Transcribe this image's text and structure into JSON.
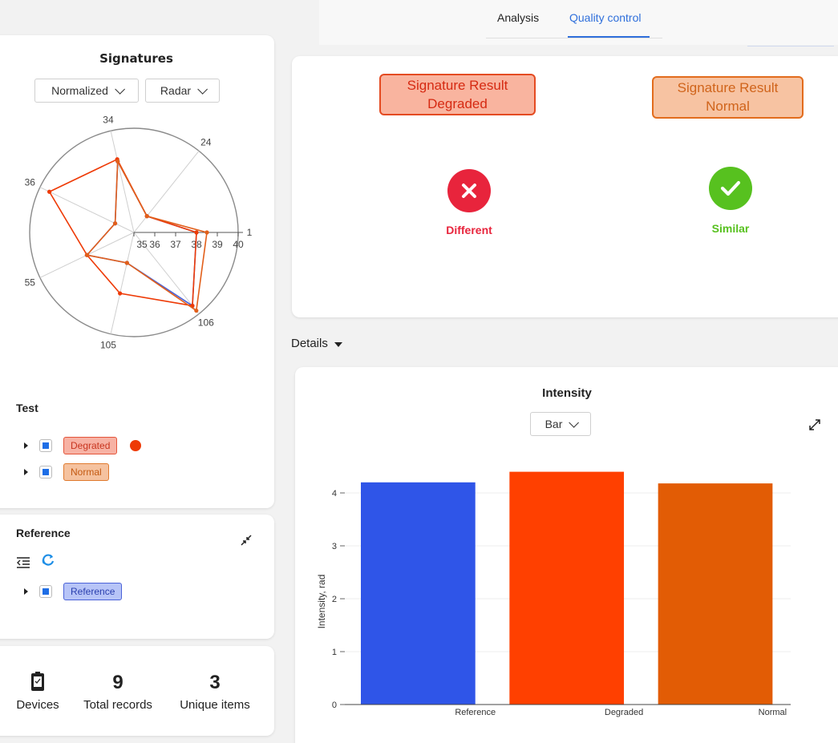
{
  "tabs": [
    {
      "label": "Analysis",
      "active": false
    },
    {
      "label": "Quality control",
      "active": true
    }
  ],
  "signatures": {
    "title": "Signatures",
    "dropdowns": [
      {
        "value": "Normalized"
      },
      {
        "value": "Radar"
      }
    ],
    "radar": {
      "angular_labels": [
        "1",
        "24",
        "34",
        "36",
        "55",
        "105",
        "106"
      ],
      "radial_ticks": [
        "35",
        "36",
        "37",
        "38",
        "39",
        "40"
      ],
      "range": [
        35,
        40
      ],
      "series": [
        {
          "name": "Reference",
          "color": "#4b63d8",
          "values": [
            38.0,
            36.0,
            38.5,
            36.0,
            37.5,
            36.5,
            39.5
          ]
        },
        {
          "name": "Degraded",
          "color": "#ee3a06",
          "values": [
            38.0,
            36.0,
            38.6,
            39.5,
            37.5,
            38.0,
            39.5
          ]
        },
        {
          "name": "Normal",
          "color": "#e25f1a",
          "values": [
            38.5,
            36.0,
            38.5,
            36.0,
            37.5,
            36.5,
            39.8
          ]
        }
      ]
    }
  },
  "test": {
    "title": "Test",
    "items": [
      {
        "label": "Degrated"
      },
      {
        "label": "Normal"
      }
    ]
  },
  "reference": {
    "title": "Reference",
    "items": [
      {
        "label": "Reference"
      }
    ]
  },
  "stats": {
    "devices_label": "Devices",
    "total_records_value": "9",
    "total_records_label": "Total records",
    "unique_items_value": "3",
    "unique_items_label": "Unique items"
  },
  "quality": {
    "result_degraded_line1": "Signature Result",
    "result_degraded_line2": "Degraded",
    "result_normal_line1": "Signature Result",
    "result_normal_line2": "Normal",
    "different_label": "Different",
    "similar_label": "Similar",
    "different_color": "#e8243c",
    "similar_color": "#57c11f"
  },
  "details_label": "Details",
  "intensity": {
    "title": "Intensity",
    "chart_type_dropdown": "Bar"
  },
  "chart_data": {
    "type": "bar",
    "title": "Intensity",
    "ylabel": "Intensity, rad",
    "xlabel": "",
    "categories": [
      "Reference",
      "Degraded",
      "Normal"
    ],
    "values": [
      4.2,
      4.4,
      4.18
    ],
    "colors": [
      "#2f55e8",
      "#ff4000",
      "#e25c05"
    ],
    "ylim": [
      0,
      4.5
    ],
    "yticks": [
      0,
      1,
      2,
      3,
      4
    ],
    "grid": true
  }
}
